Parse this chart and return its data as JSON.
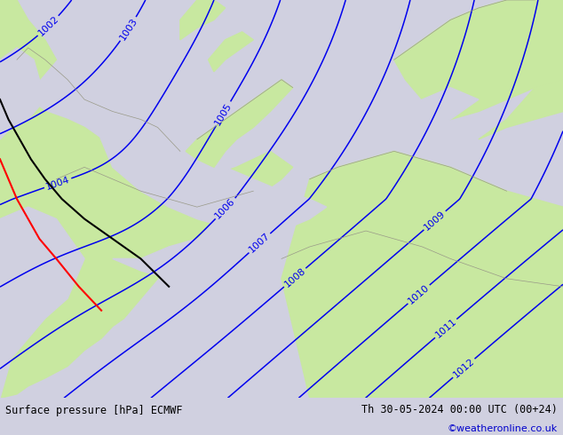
{
  "title_left": "Surface pressure [hPa] ECMWF",
  "title_right": "Th 30-05-2024 00:00 UTC (00+24)",
  "credit": "©weatheronline.co.uk",
  "land_color": "#c8e8a0",
  "sea_color": "#d0d0e0",
  "contour_color": "#0000ee",
  "contour_linewidth": 1.1,
  "label_fontsize": 8,
  "figsize": [
    6.34,
    4.9
  ],
  "dpi": 100,
  "pressure_min": 1002,
  "pressure_max": 1012
}
